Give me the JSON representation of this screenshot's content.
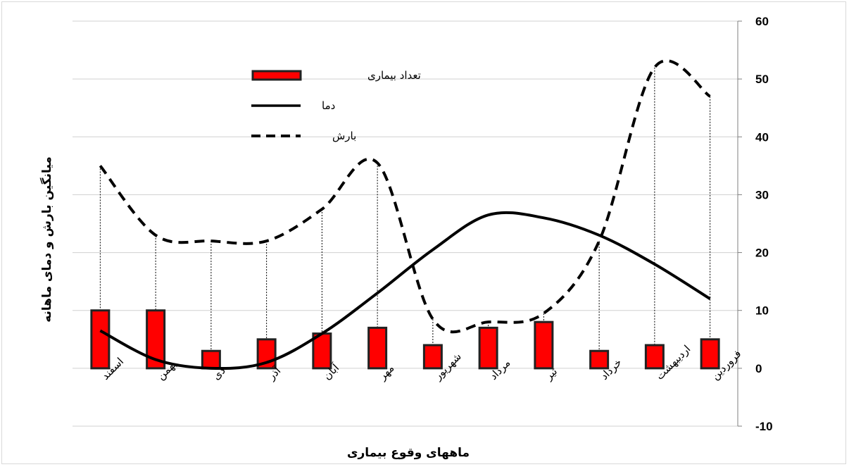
{
  "chart_data": {
    "type": "bar",
    "categories": [
      "اسفند",
      "بهمن",
      "دی",
      "آذر",
      "آبان",
      "مهر",
      "شهریور",
      "مرداد",
      "تیر",
      "خرداد",
      "اردیبهشت",
      "فروردین"
    ],
    "series": [
      {
        "name": "تعداد بیماری",
        "type": "bar",
        "values": [
          10,
          10,
          3,
          5,
          6,
          7,
          4,
          7,
          8,
          3,
          4,
          5
        ],
        "color": "#ff0000"
      },
      {
        "name": "دما",
        "type": "line",
        "style": "solid",
        "values": [
          6.5,
          1.5,
          0,
          1,
          6,
          13,
          20.5,
          26.5,
          26,
          23,
          18,
          12
        ],
        "color": "#000000"
      },
      {
        "name": "بارش",
        "type": "line",
        "style": "dashed",
        "values": [
          35,
          23,
          22,
          22,
          27.5,
          35.5,
          8.5,
          8,
          9.5,
          22,
          52,
          47
        ],
        "color": "#000000"
      }
    ],
    "yticks": [
      "60",
      "50",
      "40",
      "30",
      "20",
      "10",
      "0",
      "-10"
    ],
    "ylim": [
      -10,
      60
    ],
    "ylabel": "میانگین بارش و دمای ماهانه",
    "xlabel": "ماههای وقوع بیماری",
    "grid": "horizontal",
    "legend_position": "top-left"
  }
}
